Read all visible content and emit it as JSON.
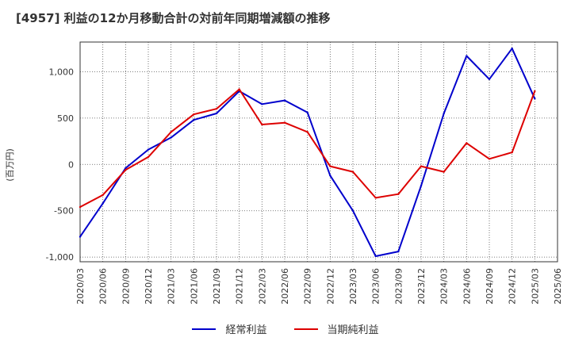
{
  "chart_data": {
    "type": "line",
    "title": "[4957]  利益の12か月移動合計の対前年同期増減額の推移",
    "ylabel": "(百万円)",
    "xlabel": "",
    "ylim": [
      -1050,
      1320
    ],
    "yticks": [
      -1000,
      -500,
      0,
      500,
      1000
    ],
    "ytick_labels": [
      "-1,000",
      "-500",
      "0",
      "500",
      "1,000"
    ],
    "categories": [
      "2020/03",
      "2020/06",
      "2020/09",
      "2020/12",
      "2021/03",
      "2021/06",
      "2021/09",
      "2021/12",
      "2022/03",
      "2022/06",
      "2022/09",
      "2022/12",
      "2023/03",
      "2023/06",
      "2023/09",
      "2023/12",
      "2024/03",
      "2024/06",
      "2024/09",
      "2024/12",
      "2025/03",
      "2025/06"
    ],
    "series": [
      {
        "name": "経常利益",
        "color": "#0000cc",
        "values": [
          -780,
          -420,
          -40,
          160,
          290,
          480,
          550,
          790,
          650,
          690,
          560,
          -120,
          -500,
          -990,
          -940,
          -230,
          550,
          1170,
          920,
          1250,
          710,
          null
        ]
      },
      {
        "name": "当期純利益",
        "color": "#dd0000",
        "values": [
          -460,
          -330,
          -60,
          80,
          350,
          540,
          600,
          810,
          430,
          450,
          350,
          -20,
          -80,
          -360,
          -320,
          -20,
          -80,
          230,
          60,
          130,
          790,
          null
        ]
      }
    ],
    "grid": true,
    "legend_position": "bottom"
  }
}
